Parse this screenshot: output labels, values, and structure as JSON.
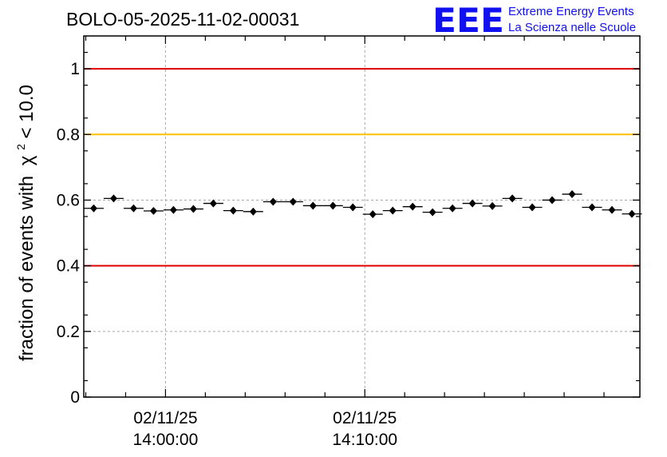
{
  "header": {
    "run_title": "BOLO-05-2025-11-02-00031",
    "logo_letters": "EEE",
    "logo_line1": "Extreme Energy Events",
    "logo_line2": "La Scienza nelle Scuole"
  },
  "colors": {
    "logo": "#1010f0",
    "threshold_high": "#e00000",
    "threshold_mid": "#ffc000",
    "threshold_low": "#e00000",
    "grid": "#a8a8a8",
    "markers": "#000000"
  },
  "chart_data": {
    "type": "scatter",
    "title": "BOLO-05-2025-11-02-00031",
    "xlabel": "",
    "ylabel": "fraction of events with",
    "ylabel_symbol": "χ",
    "ylabel_sup": "2",
    "ylabel_tail": " < 10.0",
    "x_axis": "time",
    "xlim": [
      "13:55:54",
      "14:23:48"
    ],
    "ylim": [
      0,
      1.1
    ],
    "yticks": [
      0,
      0.2,
      0.4,
      0.6,
      0.8,
      1
    ],
    "ytick_labels": [
      "0",
      "0.2",
      "0.4",
      "0.6",
      "0.8",
      "1"
    ],
    "xticks": [
      {
        "time": "14:00:00",
        "label_date": "02/11/25",
        "label_time": "14:00:00"
      },
      {
        "time": "14:10:00",
        "label_date": "02/11/25",
        "label_time": "14:10:00"
      }
    ],
    "grid": true,
    "bin_width_seconds": 60,
    "reference_lines": [
      {
        "y": 1.0,
        "color": "#e00000"
      },
      {
        "y": 0.8,
        "color": "#ffc000"
      },
      {
        "y": 0.4,
        "color": "#e00000"
      }
    ],
    "points": [
      {
        "x": "13:56:24",
        "y": 0.575
      },
      {
        "x": "13:57:24",
        "y": 0.605
      },
      {
        "x": "13:58:24",
        "y": 0.575
      },
      {
        "x": "13:59:24",
        "y": 0.567
      },
      {
        "x": "14:00:24",
        "y": 0.57
      },
      {
        "x": "14:01:24",
        "y": 0.573
      },
      {
        "x": "14:02:24",
        "y": 0.59
      },
      {
        "x": "14:03:24",
        "y": 0.568
      },
      {
        "x": "14:04:24",
        "y": 0.565
      },
      {
        "x": "14:05:24",
        "y": 0.595
      },
      {
        "x": "14:06:24",
        "y": 0.595
      },
      {
        "x": "14:07:24",
        "y": 0.583
      },
      {
        "x": "14:08:24",
        "y": 0.583
      },
      {
        "x": "14:09:24",
        "y": 0.578
      },
      {
        "x": "14:10:24",
        "y": 0.557
      },
      {
        "x": "14:11:24",
        "y": 0.568
      },
      {
        "x": "14:12:24",
        "y": 0.58
      },
      {
        "x": "14:13:24",
        "y": 0.563
      },
      {
        "x": "14:14:24",
        "y": 0.575
      },
      {
        "x": "14:15:24",
        "y": 0.59
      },
      {
        "x": "14:16:24",
        "y": 0.582
      },
      {
        "x": "14:17:24",
        "y": 0.605
      },
      {
        "x": "14:18:24",
        "y": 0.578
      },
      {
        "x": "14:19:24",
        "y": 0.6
      },
      {
        "x": "14:20:24",
        "y": 0.618
      },
      {
        "x": "14:21:24",
        "y": 0.578
      },
      {
        "x": "14:22:24",
        "y": 0.57
      },
      {
        "x": "14:23:24",
        "y": 0.558
      }
    ]
  }
}
